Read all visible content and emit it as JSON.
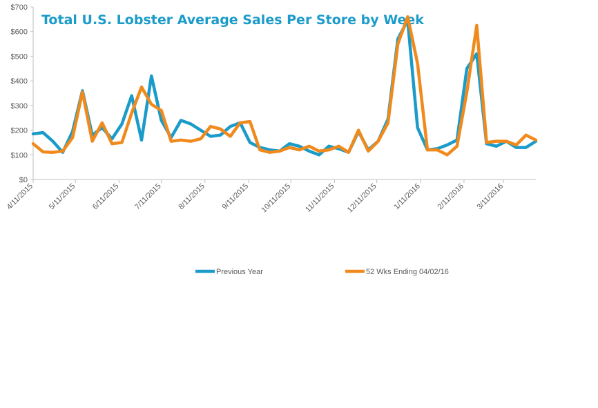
{
  "chart_data": {
    "type": "line",
    "title": "Total U.S. Lobster Average Sales Per Store by Week",
    "xlabel": "",
    "ylabel": "",
    "ylim": [
      0,
      700
    ],
    "y_ticks": [
      "$0",
      "$100",
      "$200",
      "$300",
      "$400",
      "$500",
      "$600",
      "$700"
    ],
    "x_ticks": [
      "4/11/2015",
      "5/11/2015",
      "6/11/2015",
      "7/11/2015",
      "8/11/2015",
      "9/11/2015",
      "10/11/2015",
      "11/11/2015",
      "12/11/2015",
      "1/11/2016",
      "2/11/2016",
      "3/11/2016"
    ],
    "x_tick_index": [
      0,
      4.29,
      8.71,
      13,
      17.43,
      21.86,
      26.14,
      30.57,
      34.86,
      39.29,
      43.71,
      47.71
    ],
    "grid": false,
    "legend_position": "bottom",
    "series": [
      {
        "name": "Previous Year",
        "color": "#1b9bc9",
        "values": [
          185,
          190,
          155,
          110,
          195,
          360,
          180,
          210,
          165,
          225,
          340,
          160,
          420,
          240,
          170,
          240,
          225,
          200,
          175,
          180,
          215,
          230,
          150,
          130,
          120,
          115,
          145,
          135,
          115,
          100,
          135,
          125,
          110,
          195,
          120,
          155,
          245,
          570,
          645,
          210,
          120,
          125,
          140,
          160,
          450,
          510,
          145,
          135,
          155,
          130,
          130,
          155
        ]
      },
      {
        "name": "52 Wks Ending 04/02/16",
        "color": "#f08a1d",
        "values": [
          145,
          112,
          110,
          115,
          170,
          355,
          155,
          230,
          145,
          150,
          270,
          375,
          305,
          280,
          155,
          160,
          155,
          165,
          215,
          205,
          175,
          230,
          235,
          120,
          110,
          115,
          130,
          120,
          135,
          115,
          120,
          135,
          110,
          200,
          115,
          155,
          230,
          550,
          660,
          470,
          120,
          120,
          100,
          135,
          355,
          625,
          150,
          155,
          155,
          140,
          180,
          160
        ]
      }
    ]
  }
}
